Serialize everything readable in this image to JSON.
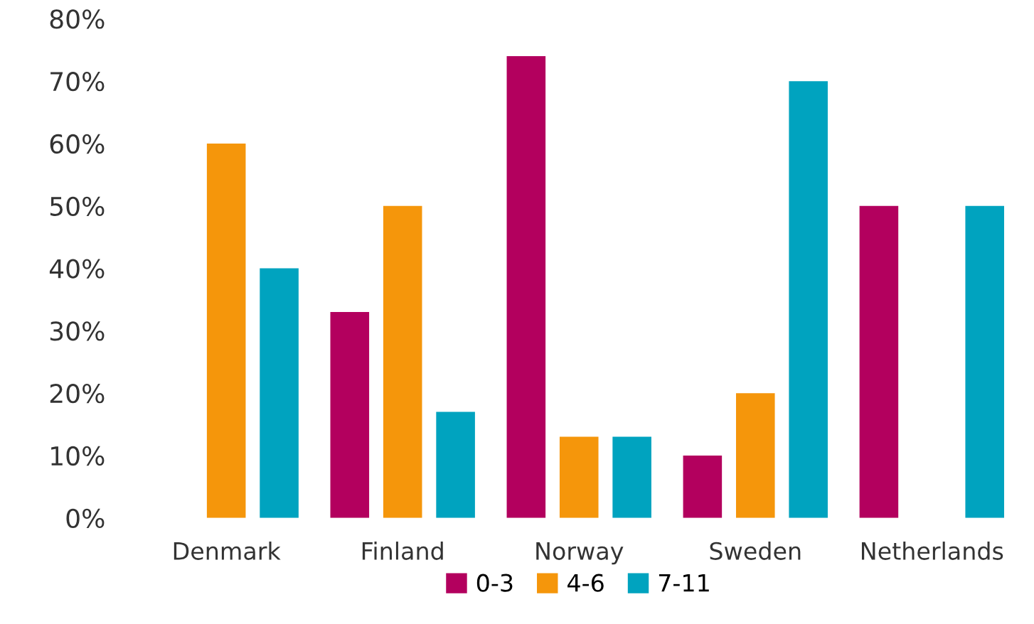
{
  "chart_data": {
    "type": "bar",
    "categories": [
      "Denmark",
      "Finland",
      "Norway",
      "Sweden",
      "Netherlands"
    ],
    "series": [
      {
        "name": "0-3",
        "color": "#b3005e",
        "values": [
          0,
          33,
          74,
          10,
          50
        ]
      },
      {
        "name": "4-6",
        "color": "#f5960b",
        "values": [
          60,
          50,
          13,
          20,
          0
        ]
      },
      {
        "name": "7-11",
        "color": "#00a3bf",
        "values": [
          40,
          17,
          13,
          70,
          50
        ]
      }
    ],
    "ylim": [
      0,
      80
    ],
    "yticks": [
      {
        "value": 0,
        "label": "0%"
      },
      {
        "value": 10,
        "label": "10%"
      },
      {
        "value": 20,
        "label": "20%"
      },
      {
        "value": 30,
        "label": "30%"
      },
      {
        "value": 40,
        "label": "40%"
      },
      {
        "value": 50,
        "label": "50%"
      },
      {
        "value": 60,
        "label": "60%"
      },
      {
        "value": 70,
        "label": "70%"
      },
      {
        "value": 80,
        "label": "80%"
      }
    ],
    "grid": false,
    "legend": "bottom"
  }
}
